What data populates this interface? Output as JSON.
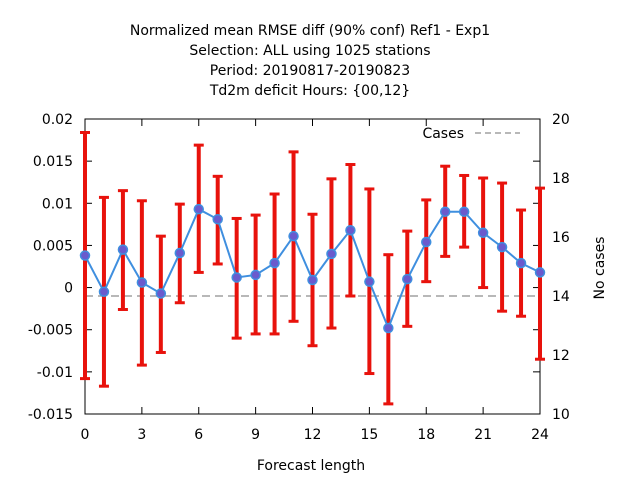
{
  "chart_data": {
    "type": "line",
    "title_lines": [
      "Normalized mean RMSE diff (90% conf) Ref1 - Exp1",
      "Selection: ALL using  1025 stations",
      "Period: 20190817-20190823",
      "Td2m deficit   Hours: {00,12}"
    ],
    "xlabel": "Forecast length",
    "ylabel_right": "No cases",
    "xlim": [
      0,
      24
    ],
    "ylim": [
      -0.015,
      0.02
    ],
    "y2lim": [
      10,
      20
    ],
    "x_ticks": [
      0,
      3,
      6,
      9,
      12,
      15,
      18,
      21,
      24
    ],
    "y_ticks": [
      -0.015,
      -0.01,
      -0.005,
      0,
      0.005,
      0.01,
      0.015,
      0.02
    ],
    "y_tick_labels": [
      "-0.015",
      "-0.01",
      "-0.005",
      "0",
      "0.005",
      "0.01",
      "0.015",
      "0.02"
    ],
    "y2_ticks": [
      10,
      12,
      14,
      16,
      18,
      20
    ],
    "legend": {
      "cases_label": "Cases",
      "placement": "top-right"
    },
    "colors": {
      "line": "#3f8fdf",
      "marker": "#6a5acd",
      "errorbar": "#e8120c",
      "cases": "#a0a0a0"
    },
    "series": [
      {
        "x": [
          0,
          1,
          2,
          3,
          4,
          5,
          6,
          7,
          8,
          9,
          10,
          11,
          12,
          13,
          14,
          15,
          16,
          17,
          18,
          19,
          20,
          21,
          22,
          23,
          24
        ],
        "values": [
          0.0038,
          -0.0005,
          0.0045,
          0.0006,
          -0.0007,
          0.0041,
          0.0093,
          0.0081,
          0.0012,
          0.0015,
          0.0029,
          0.0061,
          0.0009,
          0.004,
          0.0068,
          0.0007,
          -0.0048,
          0.001,
          0.0054,
          0.009,
          0.009,
          0.0065,
          0.0048,
          0.0029,
          0.0018
        ],
        "err_low": [
          -0.0108,
          -0.0117,
          -0.0026,
          -0.0092,
          -0.0077,
          -0.0018,
          0.0018,
          0.0028,
          -0.006,
          -0.0055,
          -0.0055,
          -0.004,
          -0.0069,
          -0.0048,
          -0.001,
          -0.0102,
          -0.0138,
          -0.0046,
          0.0007,
          0.0037,
          0.0048,
          0.0,
          -0.0028,
          -0.0034,
          -0.0085
        ],
        "err_high": [
          0.0184,
          0.0107,
          0.0115,
          0.0103,
          0.0061,
          0.0099,
          0.0169,
          0.0132,
          0.0082,
          0.0086,
          0.0111,
          0.0161,
          0.0087,
          0.0129,
          0.0146,
          0.0117,
          0.0039,
          0.0067,
          0.0104,
          0.0144,
          0.0133,
          0.013,
          0.0124,
          0.0092,
          0.0118
        ]
      }
    ],
    "cases": {
      "x": [
        0,
        24
      ],
      "values": [
        14,
        14
      ]
    }
  }
}
